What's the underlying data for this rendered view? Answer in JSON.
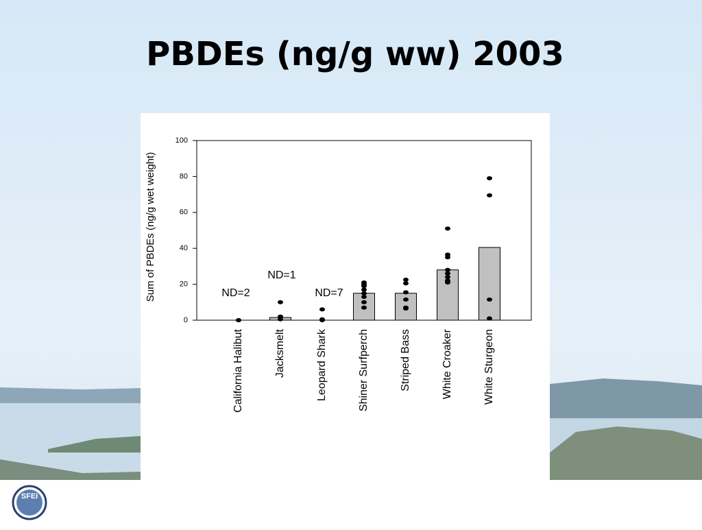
{
  "chart_data": {
    "type": "bar",
    "title": "PBDEs (ng/g ww) 2003",
    "y_label": "Sum of PBDEs (ng/g wet weight)",
    "categories": [
      "California Halibut",
      "Jacksmelt",
      "Leopard Shark",
      "Shiner Surfperch",
      "Striped Bass",
      "White Croaker",
      "White Sturgeon"
    ],
    "values": [
      0,
      1.5,
      0,
      15,
      15,
      28,
      40.5
    ],
    "color": "#c0c0c0",
    "points": [
      [
        0,
        0
      ],
      [
        10,
        2,
        0.5
      ],
      [
        6,
        0.5,
        0
      ],
      [
        21,
        20,
        19,
        17,
        15,
        13,
        10,
        7
      ],
      [
        22.5,
        20.5,
        15.5,
        11.5,
        7,
        6.5
      ],
      [
        51,
        36.5,
        35,
        28,
        26,
        24,
        22,
        21
      ],
      [
        79,
        69.5,
        11.5,
        1
      ]
    ],
    "annotations": [
      "ND=2",
      "ND=1",
      "ND=7"
    ],
    "ylim": [
      0,
      100
    ],
    "yticks": [
      0,
      20,
      40,
      60,
      80,
      100
    ]
  },
  "logo": "SFEI"
}
